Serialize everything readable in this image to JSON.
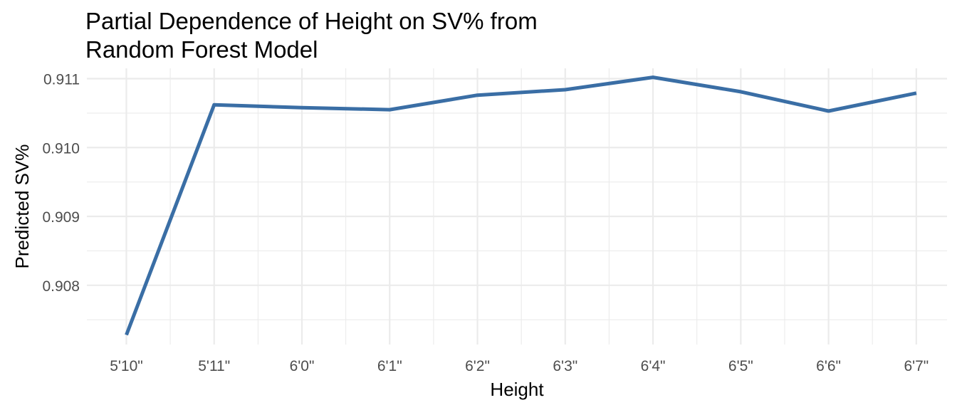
{
  "chart_data": {
    "type": "line",
    "title_lines": [
      "Partial Dependence of Height on SV% from",
      "Random Forest Model"
    ],
    "xlabel": "Height",
    "ylabel": "Predicted SV%",
    "categories": [
      "5'10\"",
      "5'11\"",
      "6'0\"",
      "6'1\"",
      "6'2\"",
      "6'3\"",
      "6'4\"",
      "6'5\"",
      "6'6\"",
      "6'7\""
    ],
    "series": [
      {
        "values": [
          0.90728,
          0.91062,
          0.91058,
          0.91055,
          0.91076,
          0.91084,
          0.91102,
          0.91081,
          0.91053,
          0.91079
        ]
      }
    ],
    "yticks": [
      "0.908",
      "0.909",
      "0.910",
      "0.911"
    ],
    "ytick_values": [
      0.908,
      0.909,
      0.91,
      0.911
    ],
    "ylim": [
      0.90714,
      0.91115
    ],
    "grid": true,
    "legend": "none",
    "line_color": "#3a6ea5"
  }
}
